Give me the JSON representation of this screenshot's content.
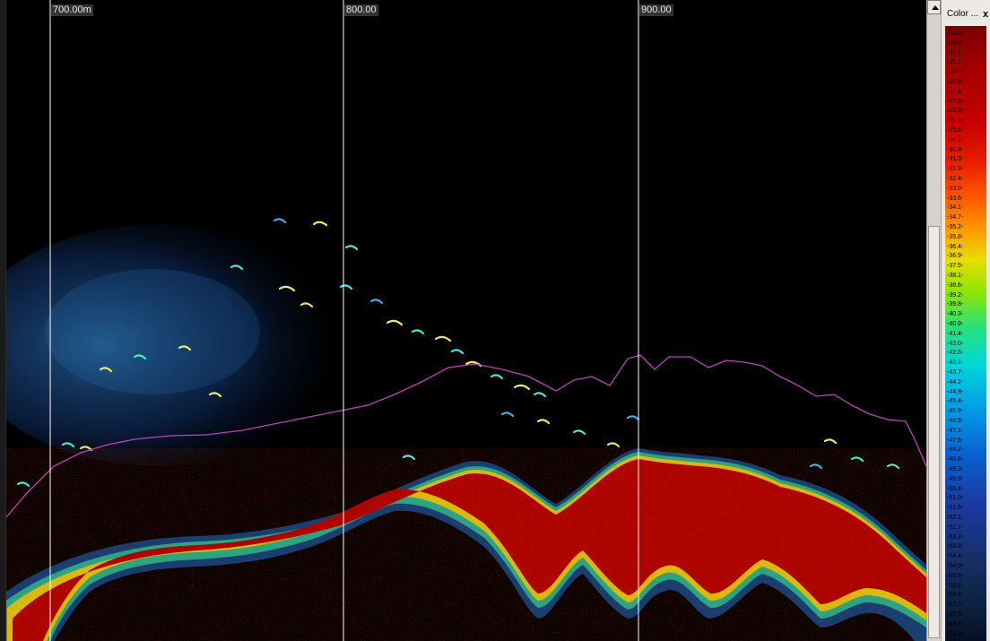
{
  "echogram": {
    "distance_labels": [
      "700.00m",
      "800.00",
      "900.00"
    ]
  },
  "color_panel": {
    "title": "Color ...",
    "close_glyph": "x",
    "scale_ticks": [
      "-24.0",
      "-24.6",
      "-25.1",
      "-25.7",
      "-26.2",
      "-26.8",
      "-27.4",
      "-27.9",
      "-28.5",
      "-29.1",
      "-29.6",
      "-30.2",
      "-30.8",
      "-31.3",
      "-31.9",
      "-32.4",
      "-33.0",
      "-33.6",
      "-34.1",
      "-34.7",
      "-35.2",
      "-35.8",
      "-36.4",
      "-36.9",
      "-37.5",
      "-38.1",
      "-38.6",
      "-39.2",
      "-39.8",
      "-40.3",
      "-40.9",
      "-41.4",
      "-42.0",
      "-42.6",
      "-43.1",
      "-43.7",
      "-44.2",
      "-44.8",
      "-45.4",
      "-45.9",
      "-46.5",
      "-47.1",
      "-47.6",
      "-48.2",
      "-48.8",
      "-49.3",
      "-49.9",
      "-50.4",
      "-51.0",
      "-51.6",
      "-52.1",
      "-52.7",
      "-53.2",
      "-53.8",
      "-54.4",
      "-54.9",
      "-55.5",
      "-56.1",
      "-56.6",
      "-57.2",
      "-57.8",
      "-58.3",
      "-58.9",
      "-59.4"
    ]
  },
  "colors": {
    "background": "#000000",
    "grid_line": "#ffffff",
    "line_trace": "#c040c0",
    "bottom_echo": "#b00000",
    "fish_school": "#2b6fd6"
  },
  "icons": {
    "scroll_up": "triangle-up-icon",
    "close": "close-icon"
  }
}
